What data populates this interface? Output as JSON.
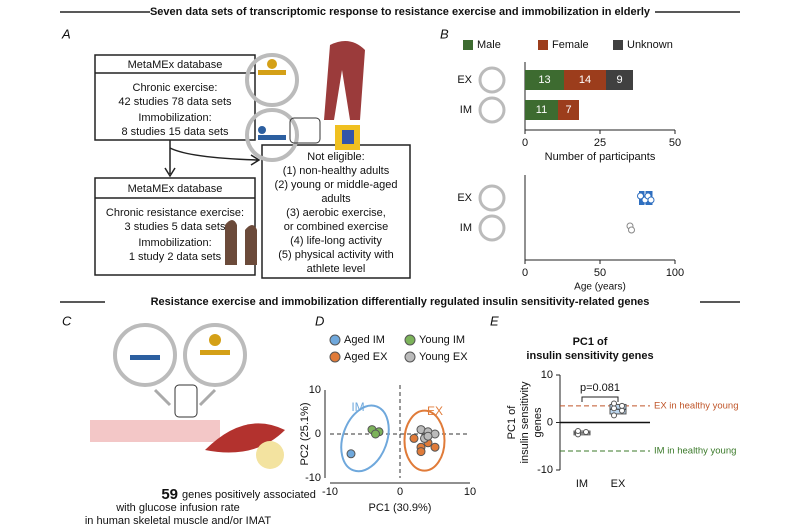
{
  "title_top": "Seven data sets of transcriptomic response to resistance exercise and immobilization in elderly",
  "title_bottom": "Resistance exercise and immobilization differentially regulated insulin sensitivity-related genes",
  "panel_a": {
    "label": "A",
    "box1": {
      "title": "MetaMEx database",
      "lines": [
        "Chronic exercise:",
        "42 studies 78 data sets",
        "Immobilization:",
        "8 studies 15 data sets"
      ]
    },
    "box2": {
      "title": "MetaMEx database",
      "lines": [
        "Chronic resistance exercise:",
        "3 studies 5 data sets",
        "Immobilization:",
        "1 study 2 data sets"
      ]
    },
    "not_eligible": [
      "Not eligible:",
      "(1) non-healthy adults",
      "(2) young or middle-aged",
      "adults",
      "(3) aerobic exercise,",
      "or combined exercise",
      "(4) life-long activity",
      "(5) physical activity with",
      "athlete level"
    ]
  },
  "panel_b": {
    "label": "B",
    "participants": {
      "type": "bar",
      "stacked": true,
      "categories": [
        "EX",
        "IM"
      ],
      "series": [
        {
          "name": "Male",
          "color": "#3d6b30",
          "values": [
            13,
            11
          ]
        },
        {
          "name": "Female",
          "color": "#9c3d1c",
          "values": [
            14,
            7
          ]
        },
        {
          "name": "Unknown",
          "color": "#404040",
          "values": [
            9,
            null
          ]
        }
      ],
      "xlim": [
        0,
        50
      ],
      "xticks": [
        0,
        25,
        50
      ],
      "xlabel": "Number of participants"
    },
    "age": {
      "type": "box",
      "categories": [
        "EX",
        "IM"
      ],
      "xlim": [
        0,
        100
      ],
      "xticks": [
        0,
        50,
        100
      ],
      "xlabel": "Age (years)",
      "boxes": [
        {
          "q1": 76,
          "median": 80,
          "q3": 85,
          "points": [
            77,
            80,
            82,
            84
          ],
          "color": "#2f6fc0"
        },
        {
          "points": [
            70,
            71
          ],
          "color": "#888888"
        }
      ]
    }
  },
  "panel_c": {
    "label": "C",
    "count": "59",
    "lines": [
      "genes positively associated",
      "with glucose infusion rate",
      "in human skeletal muscle and/or IMAT"
    ]
  },
  "panel_d": {
    "label": "D",
    "type": "scatter",
    "xlim": [
      -10,
      10
    ],
    "ylim": [
      -10,
      10
    ],
    "xticks": [
      -10,
      0,
      10
    ],
    "yticks": [
      -10,
      0,
      10
    ],
    "xlabel": "PC1 (30.9%)",
    "ylabel": "PC2 (25.1%)",
    "annotations": [
      "IM",
      "EX"
    ],
    "series": [
      {
        "name": "Aged IM",
        "color": "#6fa8dc",
        "x": [
          -7
        ],
        "y": [
          -4.5
        ]
      },
      {
        "name": "Young IM",
        "color": "#7cb35a",
        "x": [
          -4,
          -3,
          -3.5
        ],
        "y": [
          1,
          0.5,
          0
        ]
      },
      {
        "name": "Aged EX",
        "color": "#e07b39",
        "x": [
          2,
          3,
          4,
          3,
          5
        ],
        "y": [
          -1,
          -3,
          -2,
          -4,
          -3
        ]
      },
      {
        "name": "Young EX",
        "color": "#bbbbbb",
        "x": [
          3,
          4,
          3.5,
          5,
          4
        ],
        "y": [
          1,
          0.5,
          -1,
          0,
          -0.5
        ]
      }
    ]
  },
  "panel_e": {
    "label": "E",
    "type": "box",
    "title": [
      "PC1 of",
      "insulin sensitivity genes"
    ],
    "ylabel": [
      "PC1 of",
      "insulin sensitivity",
      "genes"
    ],
    "categories": [
      "IM",
      "EX"
    ],
    "ylim": [
      -10,
      10
    ],
    "yticks": [
      -10,
      0,
      10
    ],
    "annotation": "p=0.081",
    "boxes": [
      {
        "q1": -2.6,
        "median": -2.2,
        "q3": -1.8,
        "points": [
          -2.5,
          -2,
          -1.8
        ]
      },
      {
        "q1": 1.8,
        "median": 2.8,
        "q3": 3.8,
        "points": [
          1.5,
          2.5,
          3,
          3.5,
          4
        ]
      }
    ],
    "reference_lines": [
      {
        "label": "EX in healthy young",
        "value": 3.5,
        "color": "#c0562a"
      },
      {
        "label": "IM in healthy young",
        "value": -6,
        "color": "#3b7a2a"
      }
    ]
  }
}
